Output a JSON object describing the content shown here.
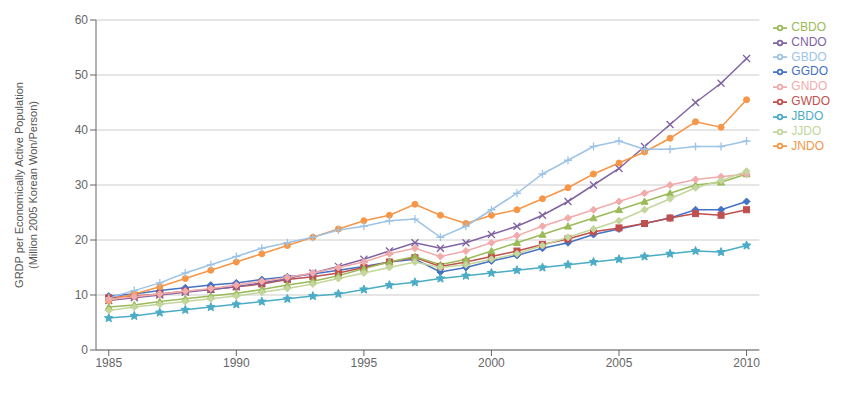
{
  "chart_data": {
    "type": "line",
    "y_label": "GRDP per Economically Active Population\n(Million 2005 Korean Won/Person)",
    "x": [
      1985,
      1986,
      1987,
      1988,
      1989,
      1990,
      1991,
      1992,
      1993,
      1994,
      1995,
      1996,
      1997,
      1998,
      1999,
      2000,
      2001,
      2002,
      2003,
      2004,
      2005,
      2006,
      2007,
      2008,
      2009,
      2010
    ],
    "series": [
      {
        "name": "GGDO",
        "color": "#4472C4",
        "marker": "diamond",
        "values": [
          9.8,
          10.2,
          10.8,
          11.3,
          11.8,
          12.2,
          12.8,
          13.3,
          13.8,
          14.5,
          15.2,
          16.0,
          16.5,
          14.2,
          15.0,
          16.2,
          17.2,
          18.5,
          19.5,
          21.0,
          22.0,
          23.0,
          24.0,
          25.5,
          25.5,
          27.0
        ]
      },
      {
        "name": "GWDO",
        "color": "#C0504D",
        "marker": "square",
        "values": [
          9.5,
          9.8,
          10.2,
          10.7,
          11.0,
          11.5,
          12.0,
          12.8,
          13.3,
          14.0,
          15.0,
          16.0,
          16.8,
          15.2,
          16.0,
          17.0,
          18.0,
          19.2,
          20.2,
          21.5,
          22.2,
          23.0,
          24.0,
          24.8,
          24.5,
          25.5
        ]
      },
      {
        "name": "CBDO",
        "color": "#9BBB59",
        "marker": "triangle",
        "values": [
          7.8,
          8.2,
          8.8,
          9.3,
          9.8,
          10.3,
          11.0,
          11.8,
          12.5,
          13.5,
          14.8,
          16.0,
          17.0,
          15.5,
          16.5,
          18.0,
          19.5,
          21.0,
          22.5,
          24.0,
          25.5,
          27.0,
          28.5,
          30.0,
          30.5,
          32.0
        ]
      },
      {
        "name": "CNDO",
        "color": "#8064A2",
        "marker": "x",
        "values": [
          9.0,
          9.5,
          10.0,
          10.5,
          11.0,
          11.5,
          12.2,
          13.0,
          14.0,
          15.2,
          16.5,
          18.0,
          19.5,
          18.5,
          19.5,
          21.0,
          22.5,
          24.5,
          27.0,
          30.0,
          33.0,
          37.0,
          41.0,
          45.0,
          48.5,
          53.0
        ]
      },
      {
        "name": "JBDO",
        "color": "#4BACC6",
        "marker": "star",
        "values": [
          5.8,
          6.2,
          6.8,
          7.3,
          7.8,
          8.3,
          8.8,
          9.3,
          9.8,
          10.2,
          11.0,
          11.8,
          12.3,
          13.0,
          13.5,
          14.0,
          14.5,
          15.0,
          15.5,
          16.0,
          16.5,
          17.0,
          17.5,
          18.0,
          17.8,
          19.0
        ]
      },
      {
        "name": "JNDO",
        "color": "#F79646",
        "marker": "circle",
        "values": [
          9.0,
          10.2,
          11.5,
          13.0,
          14.5,
          16.0,
          17.5,
          19.0,
          20.5,
          22.0,
          23.5,
          24.5,
          26.5,
          24.5,
          23.0,
          24.5,
          25.5,
          27.5,
          29.5,
          32.0,
          34.0,
          36.0,
          38.5,
          41.5,
          40.5,
          45.5
        ]
      },
      {
        "name": "GBDO",
        "color": "#9DC3E6",
        "marker": "plus",
        "values": [
          9.5,
          10.8,
          12.2,
          14.0,
          15.5,
          17.0,
          18.5,
          19.5,
          20.5,
          21.8,
          22.5,
          23.5,
          23.8,
          20.5,
          22.5,
          25.5,
          28.5,
          32.0,
          34.5,
          37.0,
          38.0,
          36.5,
          36.5,
          37.0,
          37.0,
          38.0
        ]
      },
      {
        "name": "GNDO",
        "color": "#F2ABAB",
        "marker": "diamond",
        "values": [
          9.2,
          9.7,
          10.2,
          10.7,
          11.2,
          11.8,
          12.5,
          13.2,
          14.0,
          15.0,
          16.0,
          17.5,
          18.5,
          17.0,
          18.0,
          19.5,
          20.8,
          22.5,
          24.0,
          25.5,
          27.0,
          28.5,
          30.0,
          31.0,
          31.5,
          32.0
        ]
      },
      {
        "name": "JJDO",
        "color": "#C3D69B",
        "marker": "diamond",
        "values": [
          7.2,
          7.8,
          8.3,
          8.8,
          9.3,
          9.8,
          10.5,
          11.2,
          12.0,
          13.0,
          14.0,
          15.0,
          16.0,
          15.0,
          15.5,
          16.5,
          17.5,
          19.0,
          20.5,
          22.0,
          23.5,
          25.5,
          27.5,
          29.5,
          30.8,
          32.5
        ]
      }
    ],
    "xlim": [
      1984.5,
      2010.5
    ],
    "ylim": [
      0,
      60
    ],
    "xticks": [
      1985,
      1990,
      1995,
      2000,
      2005,
      2010
    ],
    "yticks": [
      0,
      10,
      20,
      30,
      40,
      50,
      60
    ],
    "grid": true,
    "legend": "right"
  }
}
